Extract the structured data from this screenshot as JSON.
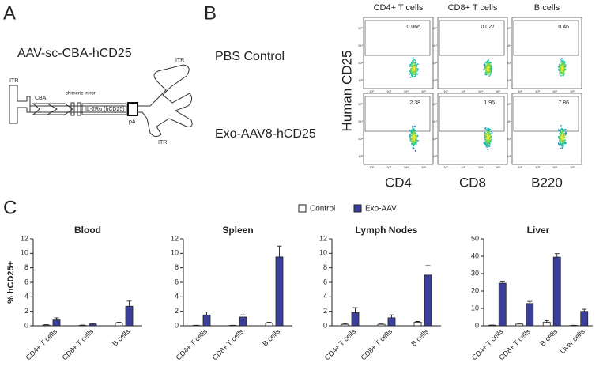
{
  "panel_labels": [
    "A",
    "B",
    "C"
  ],
  "diagram": {
    "title": "AAV-sc-CBA-hCD25",
    "itr_left": "ITR",
    "itr_top": "ITR",
    "itr_bottom": "ITR",
    "promoter": "CBA",
    "intron": "chimeric intron",
    "gene": "IL-2Rα (hCD25)",
    "polya": "pA"
  },
  "flow": {
    "columns": [
      "CD4+ T cells",
      "CD8+ T cells",
      "B cells"
    ],
    "rows": [
      "PBS Control",
      "Exo-AAV8-hCD25"
    ],
    "gates": [
      [
        0.066,
        0.027,
        0.46
      ],
      [
        2.38,
        1.95,
        7.86
      ]
    ],
    "x_labels": [
      "CD4",
      "CD8",
      "B220"
    ],
    "y_label": "Human CD25",
    "axis_ticks": [
      "10²",
      "10³",
      "10⁴",
      "10⁵"
    ]
  },
  "chart_data": [
    {
      "type": "bar",
      "title": "Blood",
      "ylabel": "% hCD25+",
      "categories": [
        "CD4+ T cells",
        "CD8+ T cells",
        "B cells"
      ],
      "series": [
        {
          "name": "Control",
          "color": "#ffffff",
          "values": [
            0.1,
            0.05,
            0.4
          ],
          "errors": [
            0.05,
            0.05,
            0.1
          ]
        },
        {
          "name": "Exo-AAV",
          "color": "#3a3f9c",
          "values": [
            0.8,
            0.25,
            2.7
          ],
          "errors": [
            0.3,
            0.1,
            0.7
          ]
        }
      ],
      "ylim": [
        0,
        12
      ],
      "yticks": [
        0,
        2,
        4,
        6,
        8,
        10,
        12
      ]
    },
    {
      "type": "bar",
      "title": "Spleen",
      "categories": [
        "CD4+ T cells",
        "CD8+ T cells",
        "B cells"
      ],
      "series": [
        {
          "name": "Control",
          "color": "#ffffff",
          "values": [
            0.05,
            0.05,
            0.4
          ],
          "errors": [
            0.02,
            0.02,
            0.1
          ]
        },
        {
          "name": "Exo-AAV",
          "color": "#3a3f9c",
          "values": [
            1.5,
            1.2,
            9.5
          ],
          "errors": [
            0.4,
            0.3,
            1.5
          ]
        }
      ],
      "ylim": [
        0,
        12
      ],
      "yticks": [
        0,
        2,
        4,
        6,
        8,
        10,
        12
      ]
    },
    {
      "type": "bar",
      "title": "Lymph Nodes",
      "categories": [
        "CD4+ T cells",
        "CD8+ T cells",
        "B cells"
      ],
      "series": [
        {
          "name": "Control",
          "color": "#ffffff",
          "values": [
            0.2,
            0.2,
            0.5
          ],
          "errors": [
            0.1,
            0.05,
            0.1
          ]
        },
        {
          "name": "Exo-AAV",
          "color": "#3a3f9c",
          "values": [
            1.8,
            1.1,
            7.0
          ],
          "errors": [
            0.7,
            0.4,
            1.3
          ]
        }
      ],
      "ylim": [
        0,
        12
      ],
      "yticks": [
        0,
        2,
        4,
        6,
        8,
        10,
        12
      ]
    },
    {
      "type": "bar",
      "title": "Liver",
      "categories": [
        "CD4+ T cells",
        "CD8+ T cells",
        "B cells",
        "Liver cells"
      ],
      "series": [
        {
          "name": "Control",
          "color": "#ffffff",
          "values": [
            0.3,
            1.0,
            2.0,
            0.2
          ],
          "errors": [
            0.1,
            0.5,
            1.0,
            0.1
          ]
        },
        {
          "name": "Exo-AAV",
          "color": "#3a3f9c",
          "values": [
            24.5,
            12.8,
            39.5,
            8.3
          ],
          "errors": [
            0.8,
            1.2,
            2.0,
            1.2
          ]
        }
      ],
      "ylim": [
        0,
        50
      ],
      "yticks": [
        0,
        10,
        20,
        30,
        40,
        50
      ]
    }
  ]
}
